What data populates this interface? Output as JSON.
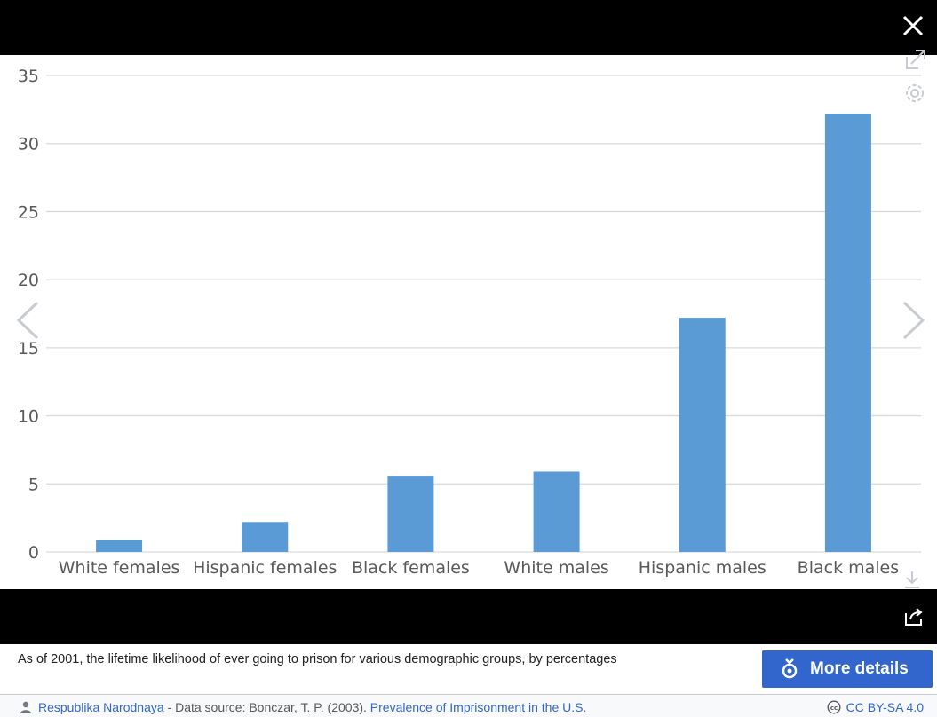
{
  "viewer": {
    "close_icon": "close-icon",
    "expand_icon": "expand-icon",
    "settings_icon": "gear-icon",
    "download_icon": "download-icon",
    "share_icon": "share-icon",
    "prev_icon": "chevron-left-icon",
    "next_icon": "chevron-right-icon"
  },
  "chart_data": {
    "type": "bar",
    "categories": [
      "White females",
      "Hispanic females",
      "Black females",
      "White males",
      "Hispanic males",
      "Black males"
    ],
    "values": [
      0.9,
      2.2,
      5.6,
      5.9,
      17.2,
      32.2
    ],
    "yticks": [
      "0",
      "5",
      "10",
      "15",
      "20",
      "25",
      "30",
      "35"
    ],
    "ylim": [
      0,
      35
    ],
    "grid": true,
    "bar_color": "#5b9bd5"
  },
  "caption": {
    "text": "As of 2001, the lifetime likelihood of ever going to prison for various demographic groups, by percentages",
    "button_label": "More details"
  },
  "credit": {
    "author": "Respublika Narodnaya",
    "source_text": " - Data source: Bonczar, T. P. (2003). ",
    "source_link": "Prevalence of Imprisonment in the U.S.",
    "license": "CC BY-SA 4.0"
  }
}
